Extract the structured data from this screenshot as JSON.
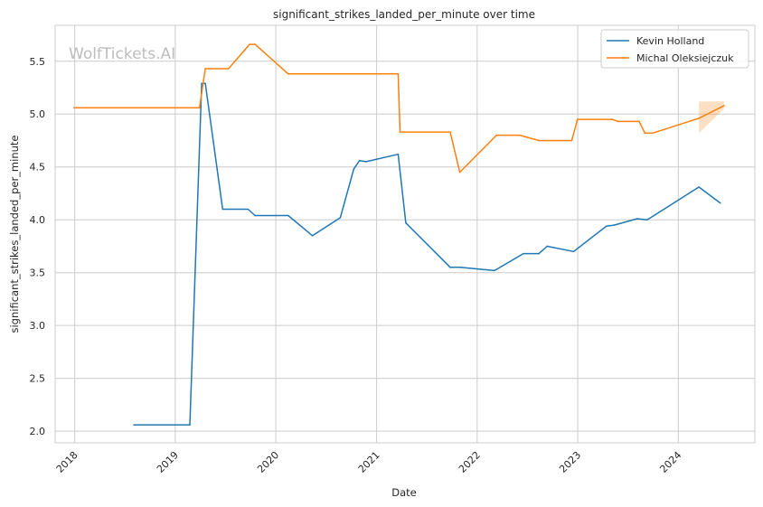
{
  "chart_data": {
    "type": "line",
    "title": "significant_strikes_landed_per_minute over time",
    "xlabel": "Date",
    "ylabel": "significant_strikes_landed_per_minute",
    "watermark": "WolfTickets.AI",
    "x_ticks": [
      "2018",
      "2019",
      "2020",
      "2021",
      "2022",
      "2023",
      "2024"
    ],
    "y_ticks": [
      "2.0",
      "2.5",
      "3.0",
      "3.5",
      "4.0",
      "4.5",
      "5.0",
      "5.5"
    ],
    "xlim": [
      "2017-10-22",
      "2024-10-05"
    ],
    "ylim": [
      1.89,
      5.84
    ],
    "grid": true,
    "legend_position": "top-right",
    "series": [
      {
        "name": "Kevin Holland",
        "color": "#1f77b4",
        "points": [
          [
            "2018-08-04",
            2.06
          ],
          [
            "2019-02-23",
            2.06
          ],
          [
            "2019-04-07",
            5.29
          ],
          [
            "2019-04-20",
            5.29
          ],
          [
            "2019-06-22",
            4.1
          ],
          [
            "2019-09-22",
            4.1
          ],
          [
            "2019-10-18",
            4.04
          ],
          [
            "2020-02-15",
            4.04
          ],
          [
            "2020-05-13",
            3.85
          ],
          [
            "2020-08-22",
            4.02
          ],
          [
            "2020-10-10",
            4.48
          ],
          [
            "2020-10-31",
            4.56
          ],
          [
            "2020-11-24",
            4.55
          ],
          [
            "2021-03-20",
            4.62
          ],
          [
            "2021-04-17",
            3.97
          ],
          [
            "2021-09-25",
            3.55
          ],
          [
            "2021-10-31",
            3.55
          ],
          [
            "2022-03-05",
            3.52
          ],
          [
            "2022-06-18",
            3.68
          ],
          [
            "2022-08-13",
            3.68
          ],
          [
            "2022-09-12",
            3.75
          ],
          [
            "2022-12-17",
            3.7
          ],
          [
            "2023-04-15",
            3.94
          ],
          [
            "2023-05-13",
            3.95
          ],
          [
            "2023-08-05",
            4.01
          ],
          [
            "2023-09-10",
            4.0
          ],
          [
            "2024-03-16",
            4.31
          ],
          [
            "2024-06-01",
            4.16
          ]
        ]
      },
      {
        "name": "Michal Oleksiejczuk",
        "color": "#ff7f0e",
        "points": [
          [
            "2017-12-30",
            5.06
          ],
          [
            "2019-03-30",
            5.06
          ],
          [
            "2019-04-20",
            5.43
          ],
          [
            "2019-07-13",
            5.43
          ],
          [
            "2019-09-28",
            5.66
          ],
          [
            "2019-10-18",
            5.66
          ],
          [
            "2020-02-15",
            5.38
          ],
          [
            "2021-03-20",
            5.38
          ],
          [
            "2021-03-27",
            4.83
          ],
          [
            "2021-09-25",
            4.83
          ],
          [
            "2021-10-30",
            4.45
          ],
          [
            "2022-03-12",
            4.8
          ],
          [
            "2022-06-04",
            4.8
          ],
          [
            "2022-08-13",
            4.75
          ],
          [
            "2022-12-10",
            4.75
          ],
          [
            "2022-12-31",
            4.95
          ],
          [
            "2023-05-06",
            4.95
          ],
          [
            "2023-05-27",
            4.93
          ],
          [
            "2023-08-12",
            4.93
          ],
          [
            "2023-09-02",
            4.82
          ],
          [
            "2023-09-30",
            4.82
          ],
          [
            "2024-03-16",
            4.96
          ],
          [
            "2024-06-15",
            5.08
          ]
        ],
        "band": {
          "x": [
            "2024-03-16",
            "2024-06-15"
          ],
          "upper": [
            5.12,
            5.12
          ],
          "lower": [
            4.82,
            5.05
          ]
        }
      }
    ]
  }
}
